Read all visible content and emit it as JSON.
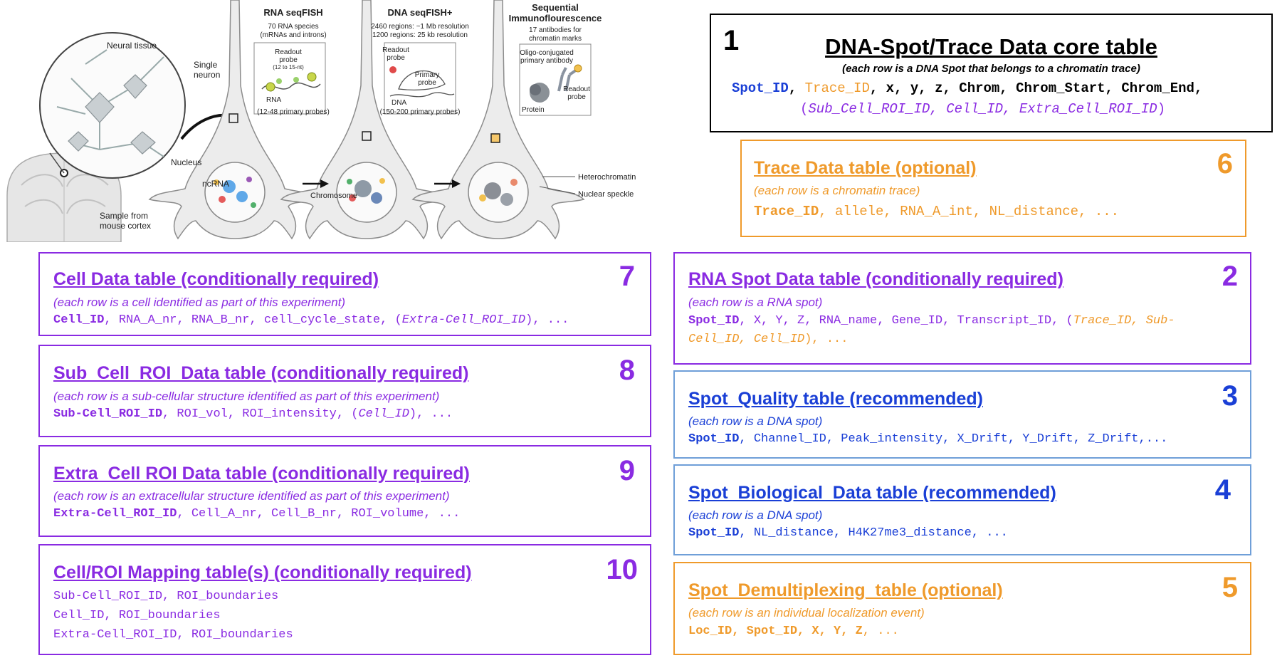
{
  "illustration": {
    "neural_tissue": "Neural tissue",
    "sample_from": "Sample from",
    "mouse_cortex": "mouse cortex",
    "single": "Single",
    "neuron": "neuron",
    "nucleus": "Nucleus",
    "ncrna": "ncRNA",
    "chromosome": "Chromosome",
    "rna_title": "RNA seqFISH",
    "rna_l1": "70 RNA species",
    "rna_l2": "(mRNAs and introns)",
    "rna_readout": "Readout",
    "rna_probe": "probe",
    "rna_probe_len": "(12 to 15-nt)",
    "rna_rna": "RNA",
    "rna_primary": "(12-48 primary probes)",
    "dna_title": "DNA seqFISH+",
    "dna_l1": "2460 regions: ~1 Mb resolution",
    "dna_l2": "1200 regions: 25 kb resolution",
    "dna_readout": "Readout",
    "dna_probe": "probe",
    "dna_primary1": "Primary",
    "dna_primary2": "probe",
    "dna_dna": "DNA",
    "dna_primary": "(150-200 primary probes)",
    "if_title1": "Sequential",
    "if_title2": "Immunoflourescence",
    "if_l1": "17 antibodies for",
    "if_l2": "chromatin marks",
    "if_oligo1": "Oligo-conjugated",
    "if_oligo2": "primary antibody",
    "if_readout": "Readout",
    "if_probe": "probe",
    "if_protein": "Protein",
    "heterochromatin": "Heterochromatin",
    "speckle": "Nuclear speckle"
  },
  "core": {
    "number": "1",
    "title": "DNA-Spot/Trace Data core table",
    "subtitle": "(each row is a DNA Spot that belongs to a chromatin trace)",
    "f_spot": "Spot_ID",
    "f_trace": "Trace_ID",
    "f_rest": "x, y, z, Chrom, Chrom_Start, Chrom_End,",
    "f_opt": "Sub_Cell_ROI_ID, Cell_ID, Extra_Cell_ROI_ID"
  },
  "t6": {
    "number": "6",
    "title": "Trace Data table (optional)",
    "subtitle": "(each row is a chromatin trace)",
    "key": "Trace_ID",
    "rest": ", allele, RNA_A_int, NL_distance, ..."
  },
  "t7": {
    "number": "7",
    "title": "Cell Data table (conditionally required)",
    "subtitle": "(each row is a cell identified as part of this experiment)",
    "key": "Cell_ID",
    "rest": ", RNA_A_nr, RNA_B_nr, cell_cycle_state, (",
    "opt": "Extra-Cell_ROI_ID",
    "tail": "), ..."
  },
  "t8": {
    "number": "8",
    "title": "Sub_Cell_ROI_Data table (conditionally required)",
    "subtitle": "(each row is a sub-cellular structure identified as part of this experiment)",
    "key": "Sub-Cell_ROI_ID",
    "rest": ", ROI_vol, ROI_intensity, (",
    "opt": "Cell_ID",
    "tail": "), ..."
  },
  "t9": {
    "number": "9",
    "title": "Extra_Cell ROI Data table (conditionally required)",
    "subtitle": "(each row is an extracellular structure identified as part of this experiment)",
    "key": "Extra-Cell_ROI_ID",
    "rest": ", Cell_A_nr, Cell_B_nr, ROI_volume, ..."
  },
  "t10": {
    "number": "10",
    "title": "Cell/ROI Mapping table(s) (conditionally required)",
    "line1": "Sub-Cell_ROI_ID, ROI_boundaries",
    "line2": "Cell_ID, ROI_boundaries",
    "line3": "Extra-Cell_ROI_ID, ROI_boundaries"
  },
  "t2": {
    "number": "2",
    "title": "RNA Spot Data table (conditionally required)",
    "subtitle": "(each row is a RNA spot)",
    "key": "Spot_ID",
    "rest": ", X, Y, Z, RNA_name, Gene_ID, Transcript_ID, (",
    "opt1": "Trace_ID, Sub-",
    "opt2": "Cell_ID, Cell_ID",
    "tail": "), ..."
  },
  "t3": {
    "number": "3",
    "title": "Spot_Quality table (recommended)",
    "subtitle": "(each row is a DNA spot)",
    "key": "Spot_ID",
    "rest": ", Channel_ID, Peak_intensity, X_Drift, Y_Drift, Z_Drift,..."
  },
  "t4": {
    "number": "4",
    "title": "Spot_Biological_Data table (recommended)",
    "subtitle": "(each row is a DNA spot)",
    "key": "Spot_ID",
    "rest": ", NL_distance, H4K27me3_distance, ..."
  },
  "t5": {
    "number": "5",
    "title": "Spot_Demultiplexing_table (optional)",
    "subtitle": "(each row is an individual localization event)",
    "key": "Loc_ID, Spot_ID, X, Y, Z",
    "rest": ", ..."
  },
  "colors": {
    "purple": "#8a2be2",
    "blue": "#1a3fd6",
    "orange": "#ef9a2b",
    "black": "#000000",
    "box_blue": "#6f9fd8"
  }
}
